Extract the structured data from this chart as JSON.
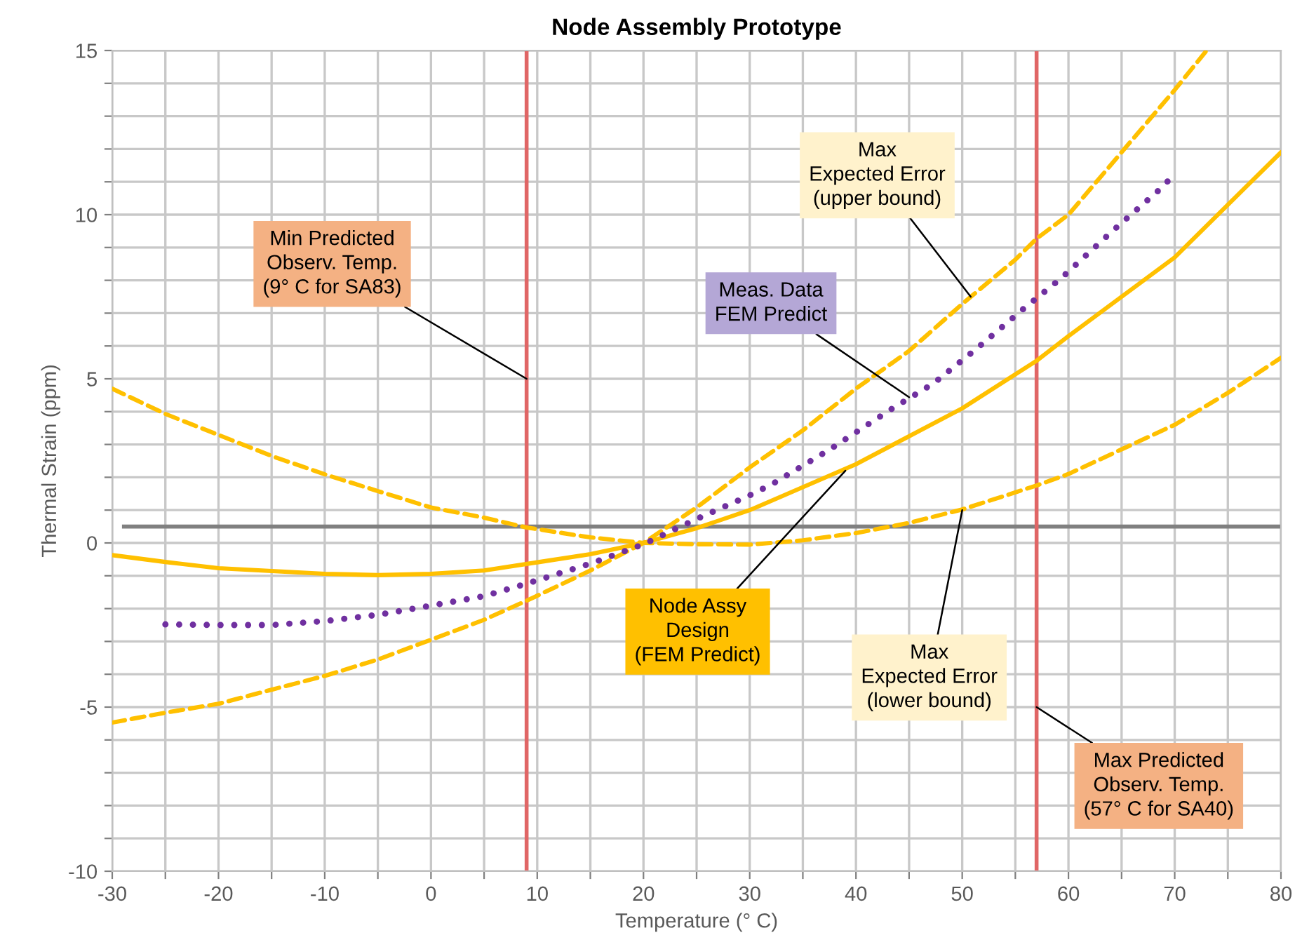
{
  "chart_data": {
    "type": "line",
    "title": "Node Assembly Prototype",
    "xlabel": "Temperature (° C)",
    "ylabel": "Thermal Strain (ppm)",
    "xlim": [
      -30,
      80
    ],
    "ylim": [
      -10,
      15
    ],
    "xticks": [
      -30,
      {
        "value": -25,
        "label": null
      },
      -20,
      {
        "value": -15,
        "label": null
      },
      -10,
      {
        "value": -5,
        "label": null
      },
      0,
      {
        "value": 5,
        "label": null
      },
      10,
      {
        "value": 15,
        "label": null
      },
      20,
      {
        "value": 25,
        "label": null
      },
      30,
      {
        "value": 35,
        "label": null
      },
      40,
      {
        "value": 45,
        "label": null
      },
      50,
      {
        "value": 55,
        "label": null
      },
      60,
      {
        "value": 65,
        "label": null
      },
      70,
      {
        "value": 75,
        "label": null
      },
      80
    ],
    "yticks": [
      -10,
      {
        "value": -9,
        "label": null
      },
      {
        "value": -8,
        "label": null
      },
      {
        "value": -7,
        "label": null
      },
      {
        "value": -6,
        "label": null
      },
      -5,
      {
        "value": -4,
        "label": null
      },
      {
        "value": -3,
        "label": null
      },
      {
        "value": -2,
        "label": null
      },
      {
        "value": -1,
        "label": null
      },
      0,
      {
        "value": 1,
        "label": null
      },
      {
        "value": 2,
        "label": null
      },
      {
        "value": 3,
        "label": null
      },
      {
        "value": 4,
        "label": null
      },
      5,
      {
        "value": 6,
        "label": null
      },
      {
        "value": 7,
        "label": null
      },
      {
        "value": 8,
        "label": null
      },
      {
        "value": 9,
        "label": null
      },
      10,
      {
        "value": 11,
        "label": null
      },
      {
        "value": 12,
        "label": null
      },
      {
        "value": 13,
        "label": null
      },
      {
        "value": 14,
        "label": null
      },
      15
    ],
    "grid": true,
    "legend": false,
    "series": [
      {
        "color": "#ffc000",
        "line_style": "solid",
        "x": [
          -30,
          -25,
          -20,
          -10,
          -5,
          0,
          5,
          10,
          15,
          20,
          25,
          30,
          40,
          50,
          57,
          60,
          70,
          80
        ],
        "values": [
          -0.37,
          -0.58,
          -0.77,
          -0.94,
          -0.98,
          -0.94,
          -0.84,
          -0.59,
          -0.34,
          0.0,
          0.45,
          1.0,
          2.4,
          4.1,
          5.55,
          6.3,
          8.7,
          11.9
        ]
      },
      {
        "color": "#ffc000",
        "line_style": "dashed",
        "x": [
          -30,
          -25,
          -20,
          -15,
          -10,
          -5,
          0,
          5,
          9,
          15,
          20,
          25,
          30,
          35,
          40,
          45,
          50,
          57,
          60,
          70,
          75,
          80
        ],
        "values": [
          4.7,
          3.93,
          3.29,
          2.65,
          2.09,
          1.58,
          1.08,
          0.77,
          0.47,
          0.17,
          0.0,
          -0.04,
          -0.05,
          0.08,
          0.3,
          0.61,
          1.02,
          1.75,
          2.1,
          3.6,
          4.57,
          5.64
        ]
      },
      {
        "color": "#ffc000",
        "line_style": "dashed",
        "x": [
          -30,
          -25,
          -20,
          -15,
          -10,
          -5,
          0,
          5,
          9,
          15,
          20,
          25,
          30,
          35,
          40,
          45,
          50,
          55,
          57,
          60,
          65,
          70,
          73
        ],
        "values": [
          -5.47,
          -5.17,
          -4.9,
          -4.47,
          -4.05,
          -3.55,
          -2.95,
          -2.34,
          -1.76,
          -0.84,
          0.0,
          1.08,
          2.3,
          3.43,
          4.7,
          5.85,
          7.28,
          8.63,
          9.27,
          10.0,
          11.9,
          13.8,
          15.0
        ]
      },
      {
        "color": "#7030a0",
        "line_style": "dotted",
        "x": [
          -25,
          -20,
          -15,
          -10,
          -5,
          0,
          5,
          9,
          15,
          20,
          25,
          30,
          32.1,
          37.6,
          43.3,
          47.3,
          51.4,
          55.8,
          59.3,
          64.1,
          68.6,
          70.1
        ],
        "values": [
          -2.48,
          -2.5,
          -2.5,
          -2.38,
          -2.19,
          -1.91,
          -1.62,
          -1.24,
          -0.63,
          -0.04,
          0.73,
          1.45,
          1.79,
          2.86,
          4.07,
          4.86,
          5.93,
          7.14,
          8.06,
          9.49,
          10.77,
          11.27
        ]
      }
    ],
    "ref_lines": [
      {
        "axis": "y",
        "value": 0.5,
        "color": "#808080"
      },
      {
        "axis": "x",
        "value": 9,
        "color": "#e06666"
      },
      {
        "axis": "x",
        "value": 57,
        "color": "#e06666"
      }
    ],
    "annotations": [
      {
        "text": "Min Predicted\nObserv. Temp.\n(9° C for SA83)",
        "x": 9,
        "y": 5
      },
      {
        "text": "Max\nExpected Error\n(upper bound)",
        "x": 50.8,
        "y": 7.5
      },
      {
        "text": "Meas. Data\nFEM Predict",
        "x": 45,
        "y": 4.44
      },
      {
        "text": "Node Assy\nDesign\n(FEM Predict)",
        "x": 39,
        "y": 2.2
      },
      {
        "text": "Max\nExpected Error\n(lower bound)",
        "x": 50,
        "y": 1.0
      },
      {
        "text": "Max Predicted\nObserv. Temp.\n(57° C for SA40)",
        "x": 57,
        "y": -5
      }
    ]
  }
}
